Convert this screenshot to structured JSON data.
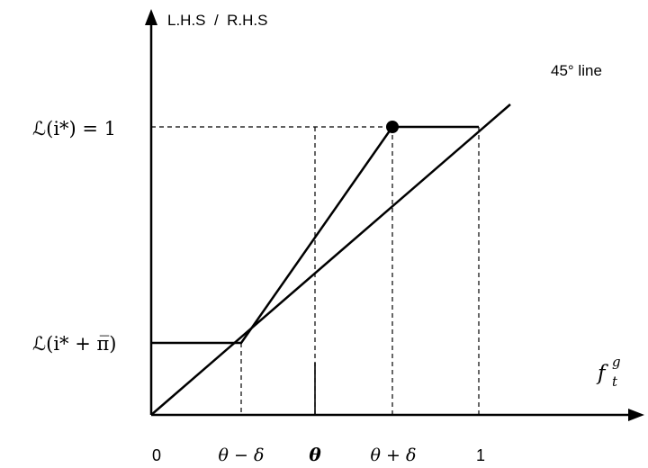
{
  "labels": {
    "y_axis_title": "L.H.S  /  R.H.S",
    "line_45_label": "45° line",
    "y_tick_upper": "ℒ(i*) = 1",
    "y_tick_lower": "ℒ(i* + π̅)",
    "x_axis_symbol": "f",
    "x_axis_symbol_sub": "t",
    "x_axis_symbol_sup": "g",
    "x_ticks": [
      "0",
      "θ − δ",
      "θ",
      "θ + δ",
      "1"
    ]
  }
}
